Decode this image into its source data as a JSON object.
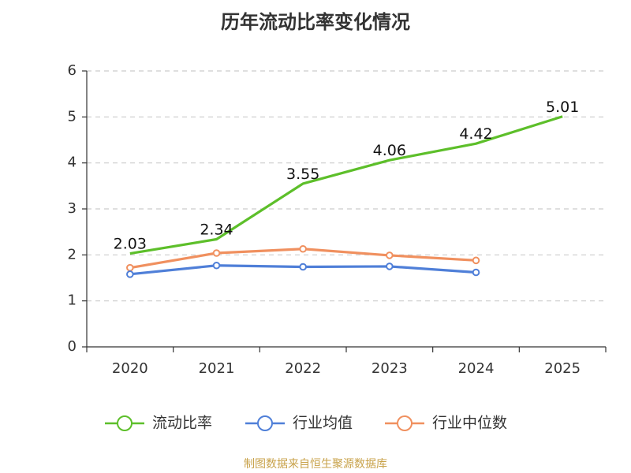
{
  "chart_data": {
    "type": "line",
    "title": "历年流动比率变化情况",
    "categories": [
      "2020",
      "2021",
      "2022",
      "2023",
      "2024",
      "2025"
    ],
    "ylim": [
      0,
      6
    ],
    "yticks": [
      0,
      1,
      2,
      3,
      4,
      5,
      6
    ],
    "grid": true,
    "legend_position": "bottom",
    "series": [
      {
        "name": "流动比率",
        "color": "#5dbf2a",
        "values": [
          2.03,
          2.34,
          3.55,
          4.06,
          4.42,
          5.01
        ],
        "show_labels": true,
        "show_markers": false
      },
      {
        "name": "行业均值",
        "color": "#4f7fd8",
        "values": [
          1.58,
          1.77,
          1.74,
          1.75,
          1.62,
          null
        ],
        "show_labels": false,
        "show_markers": true
      },
      {
        "name": "行业中位数",
        "color": "#f0905f",
        "values": [
          1.72,
          2.04,
          2.13,
          1.99,
          1.88,
          null
        ],
        "show_labels": false,
        "show_markers": true
      }
    ]
  },
  "source_note": {
    "text": "制图数据来自恒生聚源数据库",
    "color": "#c8a24a"
  }
}
